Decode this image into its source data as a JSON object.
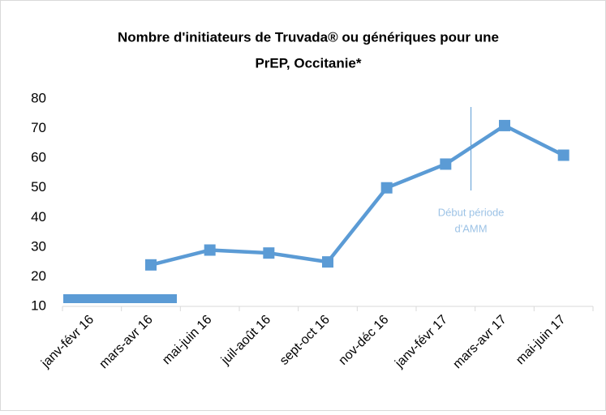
{
  "chart_data": {
    "type": "line",
    "title": [
      "Nombre d'initiateurs de Truvada® ou génériques pour une",
      "PrEP, Occitanie*"
    ],
    "categories": [
      "janv-févr 16",
      "mars-avr 16",
      "mai-juin 16",
      "juil-août 16",
      "sept-oct 16",
      "nov-déc 16",
      "janv-févr 17",
      "mars-avr 17",
      "mai-juin 17"
    ],
    "series": [
      {
        "color": "#5b9bd5",
        "values": [
          null,
          24,
          29,
          28,
          25,
          50,
          58,
          71,
          61
        ]
      }
    ],
    "ylim": [
      10,
      80
    ],
    "yticks": [
      10,
      20,
      30,
      40,
      50,
      60,
      70,
      80
    ],
    "grid": false,
    "annotation": {
      "lines": [
        "Début période",
        "d'AMM"
      ]
    }
  }
}
